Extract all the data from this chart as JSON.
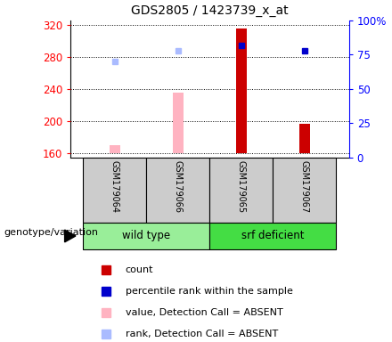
{
  "title": "GDS2805 / 1423739_x_at",
  "samples": [
    "GSM179064",
    "GSM179066",
    "GSM179065",
    "GSM179067"
  ],
  "bar_values": [
    170,
    235,
    315,
    197
  ],
  "bar_colors": [
    "#ffb3c1",
    "#ffb3c1",
    "#cc0000",
    "#cc0000"
  ],
  "bar_baseline": 160,
  "rank_values": [
    70,
    78,
    82,
    78
  ],
  "rank_colors": [
    "#aabbff",
    "#aabbff",
    "#0000cc",
    "#0000cc"
  ],
  "groups": [
    {
      "label": "wild type",
      "samples": [
        0,
        1
      ],
      "color": "#99ee99"
    },
    {
      "label": "srf deficient",
      "samples": [
        2,
        3
      ],
      "color": "#44dd44"
    }
  ],
  "ylim_left": [
    155,
    325
  ],
  "yticks_left": [
    160,
    200,
    240,
    280,
    320
  ],
  "ylim_right": [
    0,
    100
  ],
  "yticks_right": [
    0,
    25,
    50,
    75,
    100
  ],
  "ytick_labels_right": [
    "0",
    "25",
    "50",
    "75",
    "100%"
  ],
  "bar_width": 0.18,
  "background_xlabels": "#cccccc",
  "legend_items": [
    {
      "color": "#cc0000",
      "label": "count"
    },
    {
      "color": "#0000cc",
      "label": "percentile rank within the sample"
    },
    {
      "color": "#ffb3c1",
      "label": "value, Detection Call = ABSENT"
    },
    {
      "color": "#aabbff",
      "label": "rank, Detection Call = ABSENT"
    }
  ],
  "genotype_label": "genotype/variation"
}
